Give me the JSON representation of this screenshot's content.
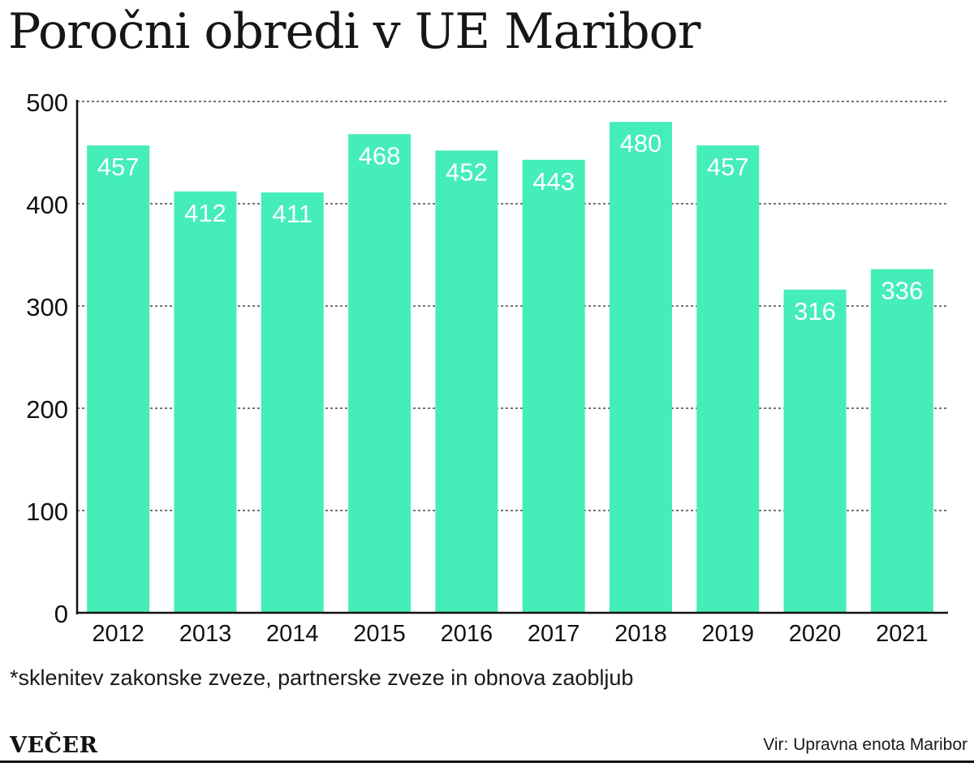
{
  "title": "Poročni obredi v UE Maribor",
  "footnote": "*sklenitev zakonske zveze, partnerske zveze in obnova zaobljub",
  "brand": "VEČER",
  "source": "Vir: Upravna enota Maribor",
  "colors": {
    "bar": "#45EDB9",
    "bar_label": "#ffffff",
    "grid": "#222222",
    "axis": "#111111"
  },
  "chart_data": {
    "type": "bar",
    "categories": [
      "2012",
      "2013",
      "2014",
      "2015",
      "2016",
      "2017",
      "2018",
      "2019",
      "2020",
      "2021"
    ],
    "values": [
      457,
      412,
      411,
      468,
      452,
      443,
      480,
      457,
      316,
      336
    ],
    "title": "Poročni obredi v UE Maribor",
    "xlabel": "",
    "ylabel": "",
    "ylim": [
      0,
      500
    ],
    "yticks": [
      "0",
      "100",
      "200",
      "300",
      "400",
      "500"
    ],
    "grid": true,
    "grid_style": "dashed",
    "legend": "none",
    "data_labels": "inside-top"
  }
}
